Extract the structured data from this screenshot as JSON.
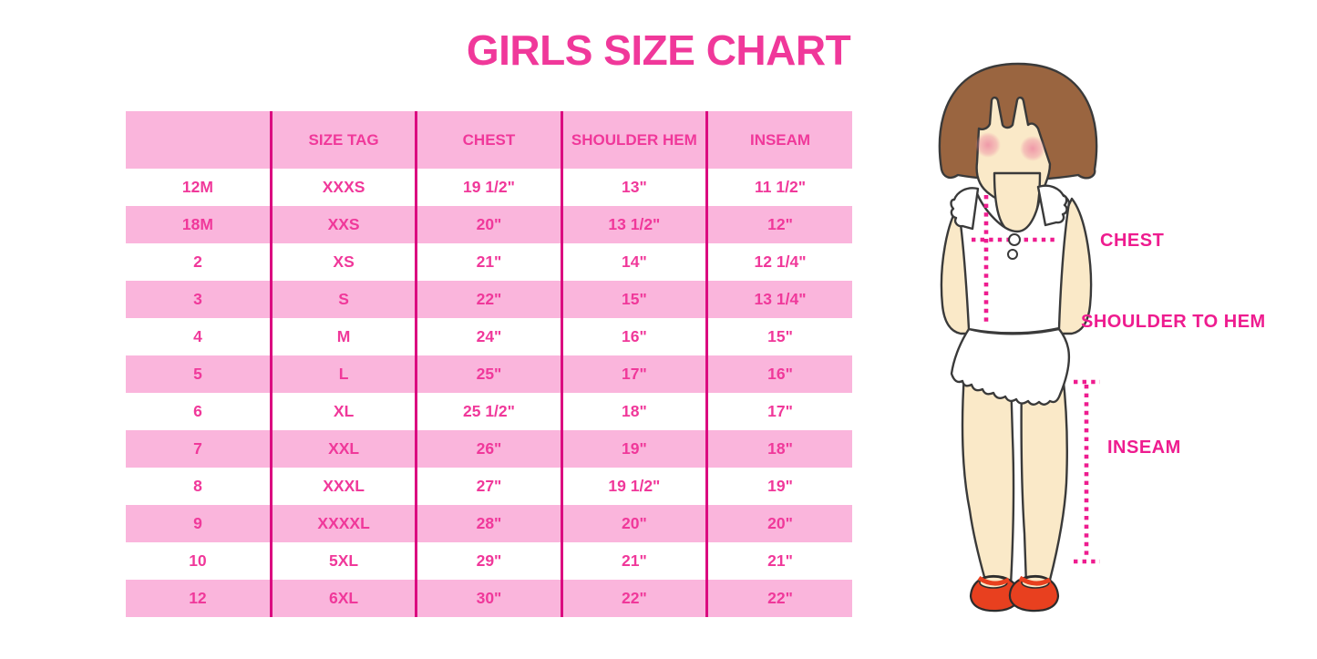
{
  "title": "GIRLS SIZE CHART",
  "chart_data": {
    "type": "table",
    "title": "GIRLS SIZE CHART",
    "columns": [
      "",
      "SIZE TAG",
      "CHEST",
      "SHOULDER HEM",
      "INSEAM"
    ],
    "rows": [
      [
        "12M",
        "XXXS",
        "19 1/2\"",
        "13\"",
        "11 1/2\""
      ],
      [
        "18M",
        "XXS",
        "20\"",
        "13 1/2\"",
        "12\""
      ],
      [
        "2",
        "XS",
        "21\"",
        "14\"",
        "12 1/4\""
      ],
      [
        "3",
        "S",
        "22\"",
        "15\"",
        "13 1/4\""
      ],
      [
        "4",
        "M",
        "24\"",
        "16\"",
        "15\""
      ],
      [
        "5",
        "L",
        "25\"",
        "17\"",
        "16\""
      ],
      [
        "6",
        "XL",
        "25 1/2\"",
        "18\"",
        "17\""
      ],
      [
        "7",
        "XXL",
        "26\"",
        "19\"",
        "18\""
      ],
      [
        "8",
        "XXXL",
        "27\"",
        "19 1/2\"",
        "19\""
      ],
      [
        "9",
        "XXXXL",
        "28\"",
        "20\"",
        "20\""
      ],
      [
        "10",
        "5XL",
        "29\"",
        "21\"",
        "21\""
      ],
      [
        "12",
        "6XL",
        "30\"",
        "22\"",
        "22\""
      ]
    ]
  },
  "measurement_labels": {
    "chest": "CHEST",
    "shoulder_to_hem": "SHOULDER TO HEM",
    "inseam": "INSEAM"
  },
  "colors": {
    "accent_pink_text": "#F0389A",
    "row_pink": "#FAB5DC",
    "divider_magenta": "#DB0C80",
    "measure_magenta": "#EE1C8F",
    "hair_brown": "#9A6540",
    "skin": "#FAE9C8",
    "shoe_red": "#E8401F"
  }
}
